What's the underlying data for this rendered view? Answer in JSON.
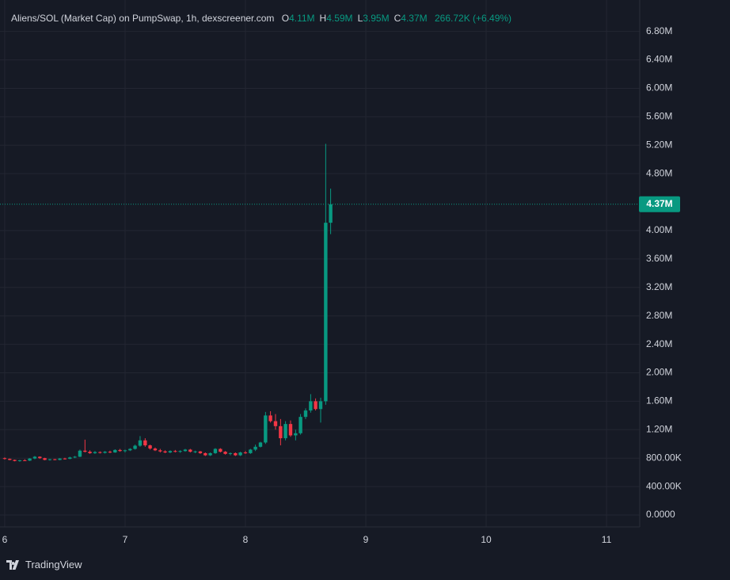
{
  "header": {
    "title": "Aliens/SOL (Market Cap) on PumpSwap, 1h, dexscreener.com",
    "ohlc": [
      {
        "key": "O",
        "value": "4.11M"
      },
      {
        "key": "H",
        "value": "4.59M"
      },
      {
        "key": "L",
        "value": "3.95M"
      },
      {
        "key": "C",
        "value": "4.37M"
      }
    ],
    "change": "266.72K (+6.49%)"
  },
  "footer": {
    "brand": "TradingView"
  },
  "chart_data": {
    "type": "candlestick",
    "x": [
      6,
      6.042,
      6.083,
      6.125,
      6.167,
      6.208,
      6.25,
      6.292,
      6.333,
      6.375,
      6.417,
      6.458,
      6.5,
      6.542,
      6.583,
      6.625,
      6.667,
      6.708,
      6.75,
      6.792,
      6.833,
      6.875,
      6.917,
      6.958,
      7,
      7.042,
      7.083,
      7.125,
      7.167,
      7.208,
      7.25,
      7.292,
      7.333,
      7.375,
      7.417,
      7.458,
      7.5,
      7.542,
      7.583,
      7.625,
      7.667,
      7.708,
      7.75,
      7.792,
      7.833,
      7.875,
      7.917,
      7.958,
      8,
      8.042,
      8.083,
      8.125,
      8.167,
      8.208,
      8.25,
      8.292,
      8.333,
      8.375,
      8.417,
      8.458,
      8.5,
      8.542,
      8.583,
      8.625,
      8.667,
      8.708
    ],
    "open": [
      800000,
      790000,
      775000,
      760000,
      770000,
      765000,
      795000,
      820000,
      800000,
      775000,
      785000,
      775000,
      795000,
      790000,
      810000,
      820000,
      905000,
      890000,
      870000,
      885000,
      875000,
      890000,
      880000,
      915000,
      900000,
      910000,
      930000,
      975000,
      1050000,
      980000,
      935000,
      910000,
      895000,
      880000,
      900000,
      890000,
      900000,
      920000,
      890000,
      895000,
      870000,
      840000,
      870000,
      930000,
      890000,
      860000,
      870000,
      840000,
      880000,
      870000,
      920000,
      960000,
      1020000,
      1400000,
      1320000,
      1250000,
      1080000,
      1280000,
      1120000,
      1150000,
      1380000,
      1470000,
      1600000,
      1490000,
      1600000,
      4110000
    ],
    "high": [
      810000,
      795000,
      780000,
      775000,
      785000,
      800000,
      830000,
      825000,
      805000,
      790000,
      790000,
      800000,
      805000,
      820000,
      830000,
      920000,
      1060000,
      910000,
      900000,
      895000,
      900000,
      905000,
      925000,
      930000,
      920000,
      940000,
      990000,
      1110000,
      1080000,
      990000,
      950000,
      930000,
      910000,
      910000,
      915000,
      910000,
      930000,
      930000,
      905000,
      900000,
      880000,
      880000,
      940000,
      940000,
      900000,
      880000,
      880000,
      890000,
      900000,
      930000,
      990000,
      1030000,
      1450000,
      1460000,
      1420000,
      1350000,
      1320000,
      1330000,
      1200000,
      1420000,
      1500000,
      1700000,
      1640000,
      1650000,
      5220000,
      4590000
    ],
    "low": [
      780000,
      770000,
      755000,
      750000,
      760000,
      760000,
      785000,
      790000,
      770000,
      765000,
      770000,
      770000,
      780000,
      785000,
      800000,
      815000,
      880000,
      860000,
      860000,
      865000,
      865000,
      870000,
      875000,
      890000,
      880000,
      900000,
      920000,
      960000,
      960000,
      920000,
      900000,
      880000,
      870000,
      870000,
      880000,
      875000,
      890000,
      880000,
      870000,
      860000,
      830000,
      830000,
      860000,
      880000,
      850000,
      840000,
      830000,
      830000,
      860000,
      860000,
      900000,
      950000,
      1000000,
      1300000,
      1200000,
      980000,
      1050000,
      1100000,
      1050000,
      1130000,
      1350000,
      1440000,
      1470000,
      1300000,
      1550000,
      3950000
    ],
    "close": [
      790000,
      775000,
      760000,
      770000,
      765000,
      795000,
      820000,
      800000,
      775000,
      785000,
      775000,
      795000,
      790000,
      810000,
      820000,
      905000,
      890000,
      870000,
      885000,
      875000,
      890000,
      880000,
      915000,
      900000,
      910000,
      930000,
      975000,
      1050000,
      980000,
      935000,
      910000,
      895000,
      880000,
      900000,
      890000,
      900000,
      920000,
      890000,
      895000,
      870000,
      840000,
      870000,
      930000,
      890000,
      860000,
      870000,
      840000,
      880000,
      870000,
      920000,
      960000,
      1020000,
      1400000,
      1320000,
      1250000,
      1080000,
      1280000,
      1120000,
      1150000,
      1380000,
      1470000,
      1600000,
      1490000,
      1600000,
      4110000,
      4370000
    ],
    "up_color": "#089981",
    "down_color": "#f23645",
    "xlim": [
      5.961,
      11.276
    ],
    "xticks": [
      6,
      7,
      8,
      9,
      10,
      11
    ],
    "ylim": [
      -167000,
      7242000
    ],
    "yticks": [
      {
        "value": 0,
        "label": "0.0000"
      },
      {
        "value": 400000,
        "label": "400.00K"
      },
      {
        "value": 800000,
        "label": "800.00K"
      },
      {
        "value": 1200000,
        "label": "1.20M"
      },
      {
        "value": 1600000,
        "label": "1.60M"
      },
      {
        "value": 2000000,
        "label": "2.00M"
      },
      {
        "value": 2400000,
        "label": "2.40M"
      },
      {
        "value": 2800000,
        "label": "2.80M"
      },
      {
        "value": 3200000,
        "label": "3.20M"
      },
      {
        "value": 3600000,
        "label": "3.60M"
      },
      {
        "value": 4000000,
        "label": "4.00M"
      },
      {
        "value": 4800000,
        "label": "4.80M"
      },
      {
        "value": 5200000,
        "label": "5.20M"
      },
      {
        "value": 5600000,
        "label": "5.60M"
      },
      {
        "value": 6000000,
        "label": "6.00M"
      },
      {
        "value": 6400000,
        "label": "6.40M"
      },
      {
        "value": 6800000,
        "label": "6.80M"
      }
    ],
    "grid": true,
    "last_price": {
      "value": 4370000,
      "label": "4.37M"
    }
  }
}
